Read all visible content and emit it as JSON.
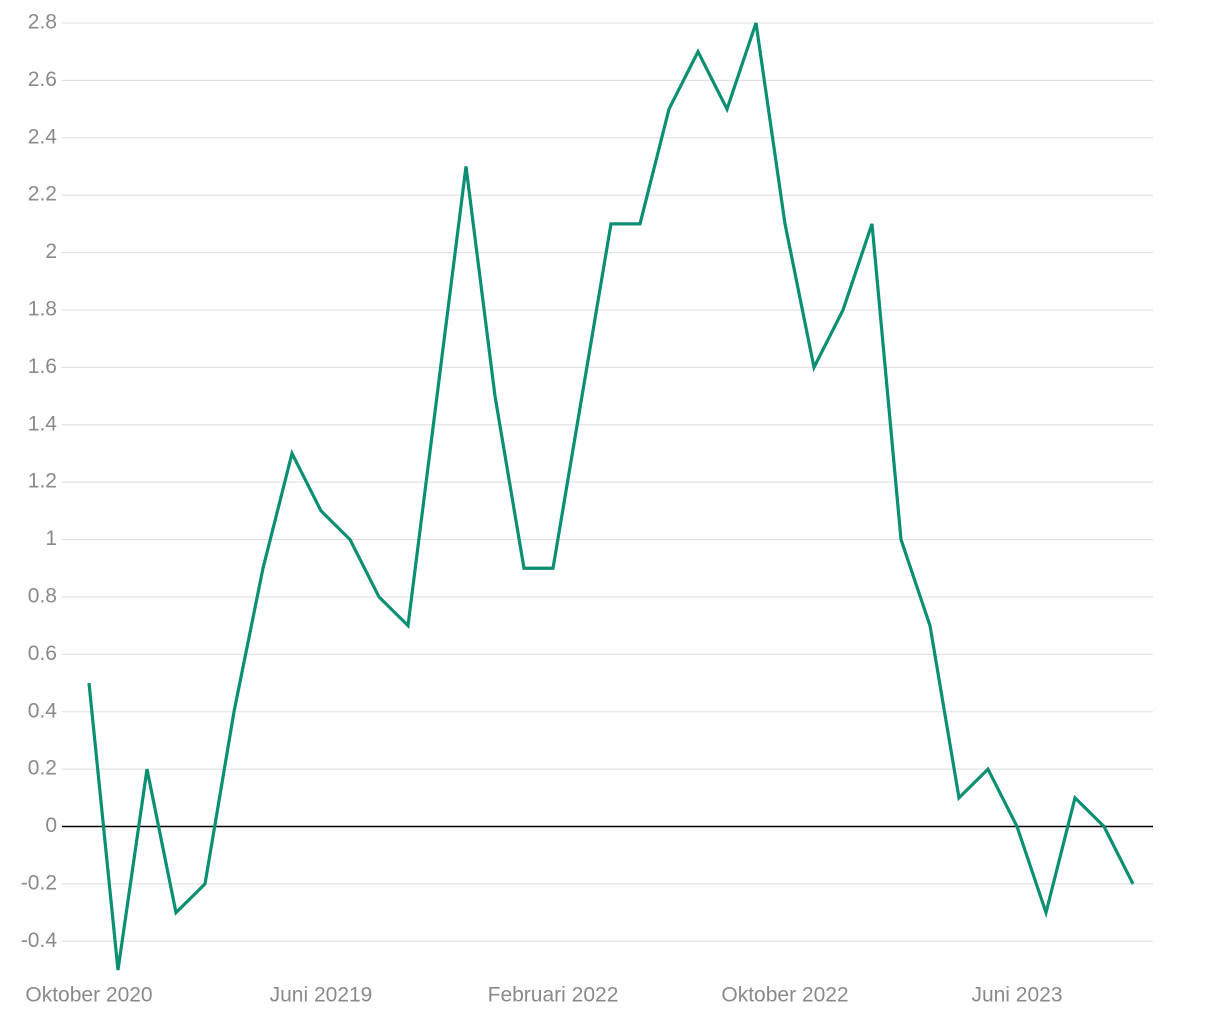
{
  "chart_data": {
    "type": "line",
    "categories": [
      "Oktober 2020",
      null,
      null,
      null,
      null,
      null,
      null,
      null,
      "Juni 20219",
      null,
      null,
      null,
      null,
      null,
      null,
      null,
      "Februari 2022",
      null,
      null,
      null,
      null,
      null,
      null,
      null,
      "Oktober 2022",
      null,
      null,
      null,
      null,
      null,
      null,
      null,
      "Juni 2023",
      null,
      null,
      null,
      null
    ],
    "series": [
      {
        "color": "#0a8f72",
        "values": [
          0.5,
          -0.5,
          0.2,
          -0.3,
          -0.2,
          0.4,
          0.9,
          1.3,
          1.1,
          1.0,
          0.8,
          0.7,
          1.5,
          2.3,
          1.5,
          0.9,
          0.9,
          1.5,
          2.1,
          2.1,
          2.5,
          2.7,
          2.5,
          2.8,
          2.1,
          1.6,
          1.8,
          2.1,
          1.0,
          0.7,
          0.1,
          0.2,
          0.0,
          -0.3,
          0.1,
          0.0,
          -0.2
        ]
      }
    ],
    "ylim": [
      -0.5,
      2.8
    ],
    "yticks": [
      -0.4,
      -0.2,
      0,
      0.2,
      0.4,
      0.6,
      0.8,
      1,
      1.2,
      1.4,
      1.6,
      1.8,
      2,
      2.2,
      2.4,
      2.6,
      2.8
    ],
    "grid": true
  }
}
